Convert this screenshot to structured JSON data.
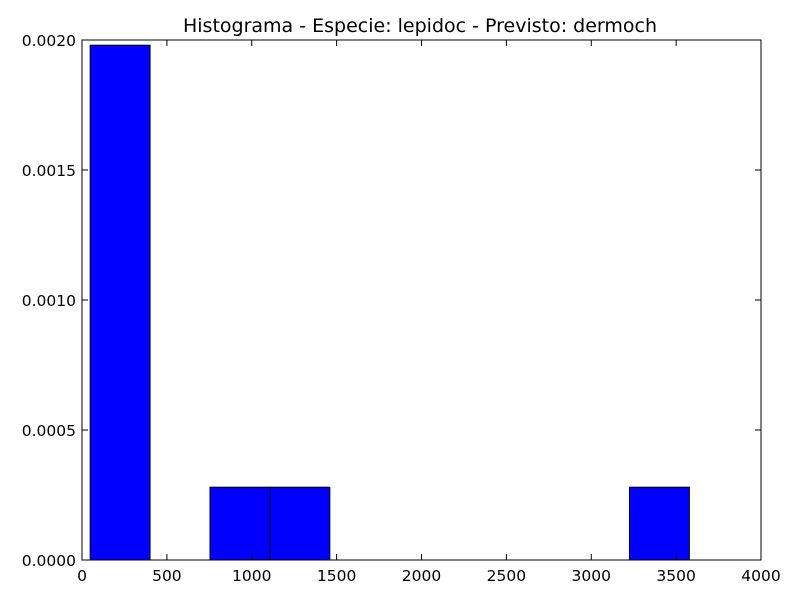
{
  "chart_data": {
    "type": "bar",
    "title": "Histograma - Especie: lepidoc - Previsto: dermoch",
    "xlabel": "",
    "ylabel": "",
    "xlim": [
      0,
      4000
    ],
    "ylim": [
      0,
      0.002
    ],
    "xticks": [
      0,
      500,
      1000,
      1500,
      2000,
      2500,
      3000,
      3500,
      4000
    ],
    "yticks": [
      0.0,
      0.0005,
      0.001,
      0.0015,
      0.002
    ],
    "ytick_labels": [
      "0.0000",
      "0.0005",
      "0.0010",
      "0.0015",
      "0.0020"
    ],
    "grid": false,
    "bar_color": "#0000ff",
    "bins": [
      {
        "x0": 48,
        "x1": 401,
        "value": 0.00198
      },
      {
        "x0": 401,
        "x1": 754,
        "value": 0
      },
      {
        "x0": 754,
        "x1": 1107,
        "value": 0.00028
      },
      {
        "x0": 1107,
        "x1": 1460,
        "value": 0.00028
      },
      {
        "x0": 1460,
        "x1": 1813,
        "value": 0
      },
      {
        "x0": 1813,
        "x1": 2166,
        "value": 0
      },
      {
        "x0": 2166,
        "x1": 2519,
        "value": 0
      },
      {
        "x0": 2519,
        "x1": 2872,
        "value": 0
      },
      {
        "x0": 2872,
        "x1": 3225,
        "value": 0
      },
      {
        "x0": 3225,
        "x1": 3578,
        "value": 0.00028
      }
    ]
  }
}
